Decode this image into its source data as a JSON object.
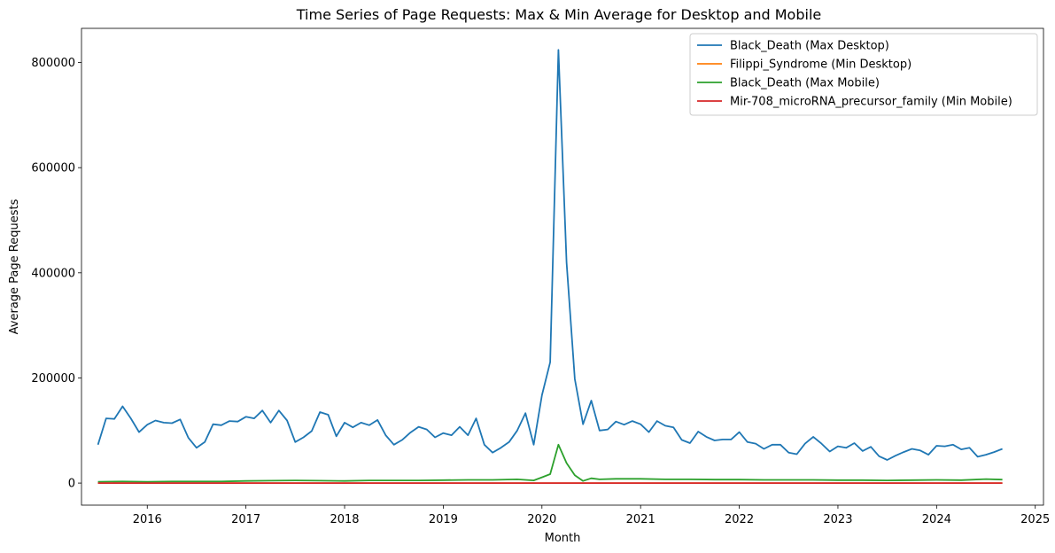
{
  "chart_data": {
    "type": "line",
    "title": "Time Series of Page Requests: Max & Min Average for Desktop and Mobile",
    "xlabel": "Month",
    "ylabel": "Average Page Requests",
    "xlim": [
      "2015-05-01",
      "2025-02-01"
    ],
    "ylim": [
      -42000,
      865000
    ],
    "x_ticks": [
      "2016",
      "2017",
      "2018",
      "2019",
      "2020",
      "2021",
      "2022",
      "2023",
      "2024",
      "2025"
    ],
    "y_ticks": [
      0,
      200000,
      400000,
      600000,
      800000
    ],
    "y_tick_labels": [
      "0",
      "200000",
      "400000",
      "600000",
      "800000"
    ],
    "legend_position": "top-right",
    "grid": false,
    "series": [
      {
        "name": "Black_Death (Max Desktop)",
        "color": "#1f77b4",
        "x": [
          "2015-07",
          "2015-08",
          "2015-09",
          "2015-10",
          "2015-11",
          "2015-12",
          "2016-01",
          "2016-02",
          "2016-03",
          "2016-04",
          "2016-05",
          "2016-06",
          "2016-07",
          "2016-08",
          "2016-09",
          "2016-10",
          "2016-11",
          "2016-12",
          "2017-01",
          "2017-02",
          "2017-03",
          "2017-04",
          "2017-05",
          "2017-06",
          "2017-07",
          "2017-08",
          "2017-09",
          "2017-10",
          "2017-11",
          "2017-12",
          "2018-01",
          "2018-02",
          "2018-03",
          "2018-04",
          "2018-05",
          "2018-06",
          "2018-07",
          "2018-08",
          "2018-09",
          "2018-10",
          "2018-11",
          "2018-12",
          "2019-01",
          "2019-02",
          "2019-03",
          "2019-04",
          "2019-05",
          "2019-06",
          "2019-07",
          "2019-08",
          "2019-09",
          "2019-10",
          "2019-11",
          "2019-12",
          "2020-01",
          "2020-02",
          "2020-03",
          "2020-04",
          "2020-05",
          "2020-06",
          "2020-07",
          "2020-08",
          "2020-09",
          "2020-10",
          "2020-11",
          "2020-12",
          "2021-01",
          "2021-02",
          "2021-03",
          "2021-04",
          "2021-05",
          "2021-06",
          "2021-07",
          "2021-08",
          "2021-09",
          "2021-10",
          "2021-11",
          "2021-12",
          "2022-01",
          "2022-02",
          "2022-03",
          "2022-04",
          "2022-05",
          "2022-06",
          "2022-07",
          "2022-08",
          "2022-09",
          "2022-10",
          "2022-11",
          "2022-12",
          "2023-01",
          "2023-02",
          "2023-03",
          "2023-04",
          "2023-05",
          "2023-06",
          "2023-07",
          "2023-08",
          "2023-09",
          "2023-10",
          "2023-11",
          "2023-12",
          "2024-01",
          "2024-02",
          "2024-03",
          "2024-04",
          "2024-05",
          "2024-06",
          "2024-07",
          "2024-08",
          "2024-09"
        ],
        "values": [
          73000,
          123000,
          122000,
          146000,
          123000,
          97000,
          111000,
          119000,
          115000,
          114000,
          121000,
          86000,
          67000,
          78000,
          112000,
          110000,
          118000,
          117000,
          126000,
          123000,
          138000,
          115000,
          138000,
          119000,
          78000,
          87000,
          99000,
          135000,
          130000,
          89000,
          115000,
          106000,
          115000,
          110000,
          120000,
          91000,
          73000,
          82000,
          96000,
          107000,
          102000,
          87000,
          95000,
          91000,
          107000,
          91000,
          123000,
          73000,
          58000,
          67000,
          78000,
          100000,
          133000,
          73000,
          167000,
          230000,
          824000,
          420000,
          198000,
          112000,
          157000,
          100000,
          102000,
          117000,
          111000,
          118000,
          112000,
          97000,
          118000,
          109000,
          106000,
          82000,
          76000,
          98000,
          88000,
          81000,
          83000,
          83000,
          97000,
          78000,
          75000,
          65000,
          73000,
          73000,
          58000,
          55000,
          75000,
          88000,
          75000,
          60000,
          70000,
          67000,
          76000,
          61000,
          69000,
          51000,
          44000,
          52000,
          59000,
          65000,
          62000,
          54000,
          71000,
          70000,
          73000,
          64000,
          67000,
          50000,
          54000,
          59000,
          65000
        ]
      },
      {
        "name": "Filippi_Syndrome (Min Desktop)",
        "color": "#ff7f0e",
        "x": [
          "2015-07",
          "2016-07",
          "2017-07",
          "2018-07",
          "2019-07",
          "2020-07",
          "2021-07",
          "2022-07",
          "2023-07",
          "2024-07",
          "2024-09"
        ],
        "values": [
          5,
          5,
          5,
          5,
          5,
          5,
          5,
          5,
          5,
          5,
          5
        ]
      },
      {
        "name": "Black_Death (Max Mobile)",
        "color": "#2ca02c",
        "x": [
          "2015-07",
          "2015-10",
          "2016-01",
          "2016-04",
          "2016-07",
          "2016-10",
          "2017-01",
          "2017-04",
          "2017-07",
          "2017-10",
          "2018-01",
          "2018-04",
          "2018-07",
          "2018-10",
          "2019-01",
          "2019-04",
          "2019-07",
          "2019-10",
          "2019-12",
          "2020-01",
          "2020-02",
          "2020-03",
          "2020-04",
          "2020-05",
          "2020-06",
          "2020-07",
          "2020-08",
          "2020-10",
          "2021-01",
          "2021-04",
          "2021-07",
          "2021-10",
          "2022-01",
          "2022-04",
          "2022-07",
          "2022-10",
          "2023-01",
          "2023-04",
          "2023-07",
          "2023-10",
          "2024-01",
          "2024-04",
          "2024-07",
          "2024-09"
        ],
        "values": [
          2500,
          3000,
          2500,
          3000,
          3000,
          3000,
          4000,
          4500,
          5000,
          4500,
          4000,
          5000,
          5000,
          5000,
          5500,
          6000,
          6000,
          7000,
          5000,
          11000,
          17000,
          73000,
          38000,
          15000,
          4000,
          9000,
          7000,
          8000,
          8000,
          7000,
          7000,
          6500,
          6500,
          6000,
          6000,
          6000,
          5500,
          5500,
          5000,
          5500,
          6000,
          5500,
          7500,
          6500
        ]
      },
      {
        "name": "Mir-708_microRNA_precursor_family (Min Mobile)",
        "color": "#d62728",
        "x": [
          "2015-07",
          "2016-07",
          "2017-07",
          "2018-07",
          "2019-07",
          "2020-07",
          "2021-07",
          "2022-07",
          "2023-07",
          "2024-07",
          "2024-09"
        ],
        "values": [
          2,
          2,
          2,
          2,
          2,
          2,
          2,
          2,
          2,
          2,
          2
        ]
      }
    ]
  }
}
